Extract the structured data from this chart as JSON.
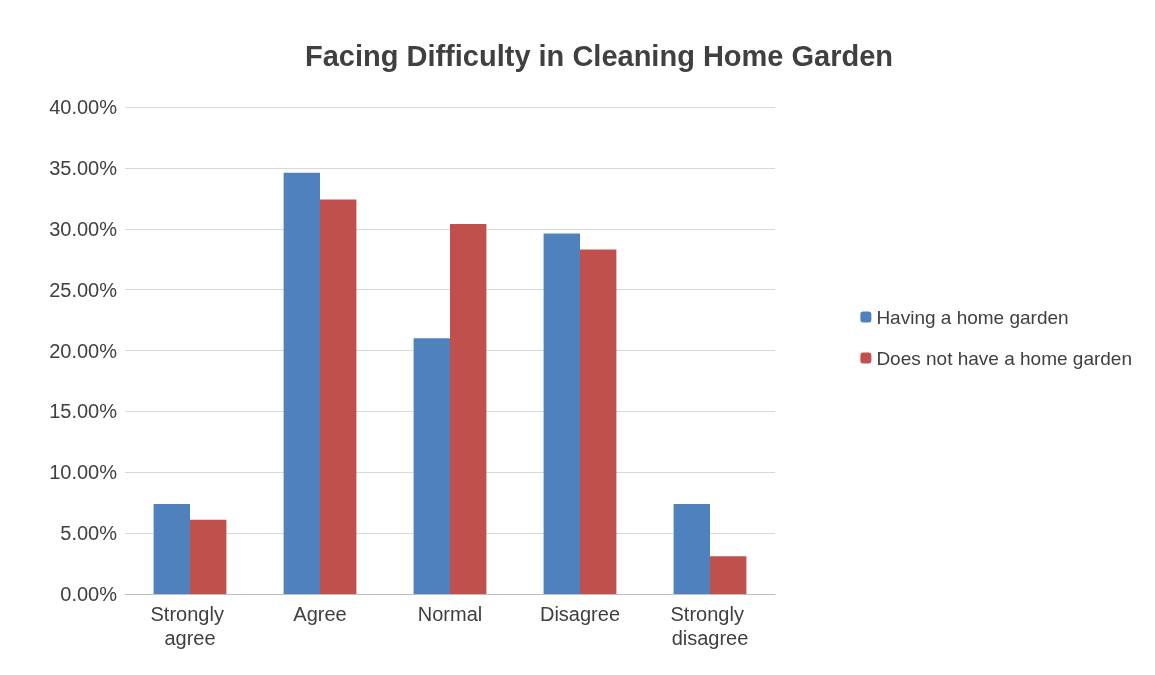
{
  "chart_data": {
    "type": "bar",
    "title": "Facing Difficulty in Cleaning Home Garden",
    "categories": [
      "Strongly agree",
      "Agree",
      "Normal",
      "Disagree",
      "Strongly disagree"
    ],
    "series": [
      {
        "name": "Having a home garden",
        "color": "#4f81bd",
        "values": [
          7.4,
          34.6,
          21.0,
          29.6,
          7.4
        ]
      },
      {
        "name": "Does not have a home garden",
        "color": "#c0504d",
        "values": [
          6.1,
          32.4,
          30.4,
          28.3,
          3.1
        ]
      }
    ],
    "ylim": [
      0,
      40
    ],
    "yticks": [
      {
        "value": 0,
        "label": "0.00%"
      },
      {
        "value": 5,
        "label": "5.00%"
      },
      {
        "value": 10,
        "label": "10.00%"
      },
      {
        "value": 15,
        "label": "15.00%"
      },
      {
        "value": 20,
        "label": "20.00%"
      },
      {
        "value": 25,
        "label": "25.00%"
      },
      {
        "value": 30,
        "label": "30.00%"
      },
      {
        "value": 35,
        "label": "35.00%"
      },
      {
        "value": 40,
        "label": "40.00%"
      }
    ],
    "grid": "y",
    "legend": "right"
  }
}
